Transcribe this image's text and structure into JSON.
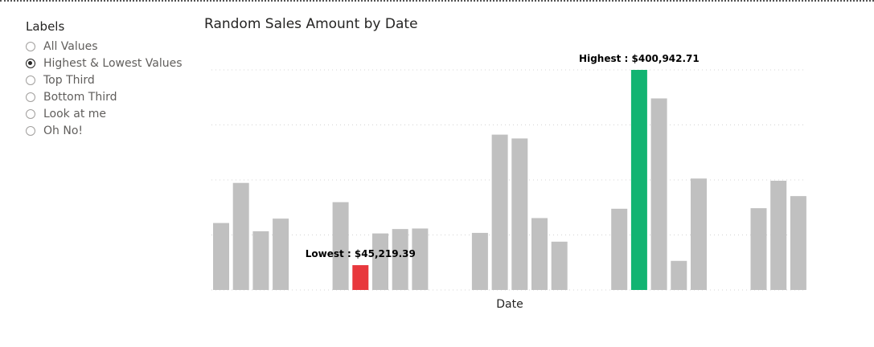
{
  "slicer": {
    "title": "Labels",
    "options": [
      {
        "label": "All Values",
        "checked": false
      },
      {
        "label": "Highest & Lowest Values",
        "checked": true
      },
      {
        "label": "Top Third",
        "checked": false
      },
      {
        "label": "Bottom Third",
        "checked": false
      },
      {
        "label": "Look at me",
        "checked": false
      },
      {
        "label": "Oh No!",
        "checked": false
      }
    ]
  },
  "colors": {
    "bar": "#c0c0c0",
    "highest": "#12b472",
    "lowest": "#e8383d",
    "grid": "#d4d4d4"
  },
  "chart_data": {
    "type": "bar",
    "title": "Random Sales Amount by Date",
    "xlabel": "Date",
    "ylabel": "",
    "ylim": [
      0,
      400942.71
    ],
    "gridlines": [
      0,
      100235.68,
      200471.36,
      300707.03,
      400942.71
    ],
    "grid": true,
    "groups": [
      {
        "values": [
          122000,
          195000,
          107000,
          130000
        ]
      },
      {
        "values": [
          160000,
          45219.39,
          103000,
          111000,
          112000
        ]
      },
      {
        "values": [
          104000,
          283000,
          276000,
          131000,
          88000
        ]
      },
      {
        "values": [
          148000,
          400942.71,
          349000,
          53000,
          203000
        ]
      },
      {
        "values": [
          149000,
          199000,
          171000
        ]
      }
    ],
    "annotations": [
      {
        "label": "Highest : $400,942.71",
        "group": 3,
        "index": 1,
        "kind": "highest"
      },
      {
        "label": "Lowest : $45,219.39",
        "group": 1,
        "index": 1,
        "kind": "lowest"
      }
    ]
  }
}
